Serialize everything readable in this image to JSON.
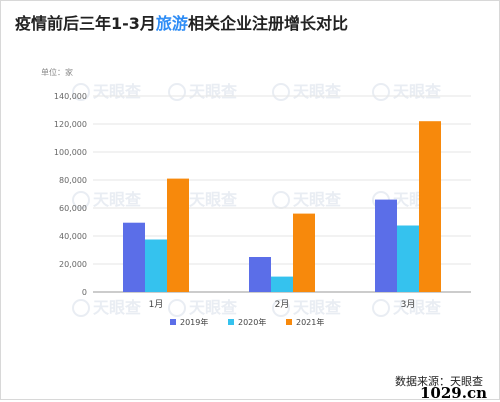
{
  "title": {
    "prefix": "疫情前后三年1-3月",
    "highlight": "旅游",
    "suffix": "相关企业注册增长对比",
    "highlight_color": "#2f8df5"
  },
  "watermark": {
    "text": "天眼查",
    "icon": "eye-logo-icon"
  },
  "source": "数据来源：天眼查",
  "site_brand": "1029.cn",
  "chart_data": {
    "type": "bar",
    "unit_label": "单位：家",
    "categories": [
      "1月",
      "2月",
      "3月"
    ],
    "series": [
      {
        "name": "2019年",
        "color": "#5b6ee8",
        "values": [
          49500,
          25000,
          66000
        ]
      },
      {
        "name": "2020年",
        "color": "#35c2ee",
        "values": [
          37500,
          11000,
          47500
        ]
      },
      {
        "name": "2021年",
        "color": "#f7890c",
        "values": [
          81000,
          56000,
          122000
        ]
      }
    ],
    "ylim": [
      0,
      140000
    ],
    "yticks": [
      0,
      20000,
      40000,
      60000,
      80000,
      100000,
      120000,
      140000
    ],
    "ytick_labels": [
      "0",
      "20,000",
      "40,000",
      "60,000",
      "80,000",
      "100,000",
      "120,000",
      "140,000"
    ],
    "grid": true,
    "legend_position": "bottom"
  }
}
